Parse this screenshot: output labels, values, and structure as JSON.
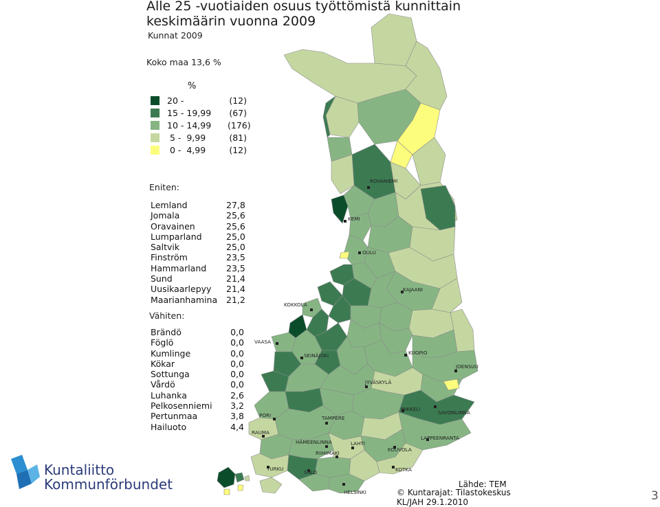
{
  "title": {
    "line1": "Alle 25 -vuotiaiden osuus työttömistä kunnittain",
    "line2": "keskimäärin vuonna 2009"
  },
  "subtitle": "Kunnat 2009",
  "country_total": "Koko maa 13,6 %",
  "legend": {
    "unit": "%",
    "classes": [
      {
        "range": "20 -",
        "count": "(12)",
        "color": "#0b4d2b"
      },
      {
        "range": "15 - 19,99",
        "count": "(67)",
        "color": "#3c7b52"
      },
      {
        "range": "10 - 14,99",
        "count": "(176)",
        "color": "#86b583"
      },
      {
        "range": " 5 -  9,99",
        "count": "(81)",
        "color": "#c5d7a1"
      },
      {
        "range": " 0 -  4,99",
        "count": "(12)",
        "color": "#fdfd7d"
      }
    ]
  },
  "most": {
    "heading": "Eniten:",
    "items": [
      {
        "name": "Lemland",
        "value": "27,8"
      },
      {
        "name": "Jomala",
        "value": "25,6"
      },
      {
        "name": "Oravainen",
        "value": "25,6"
      },
      {
        "name": "Lumparland",
        "value": "25,0"
      },
      {
        "name": "Saltvik",
        "value": "25,0"
      },
      {
        "name": "Finström",
        "value": "23,5"
      },
      {
        "name": "Hammarland",
        "value": "23,5"
      },
      {
        "name": "Sund",
        "value": "21,4"
      },
      {
        "name": "Uusikaarlepyy",
        "value": "21,4"
      },
      {
        "name": "Maarianhamina",
        "value": "21,2"
      }
    ]
  },
  "least": {
    "heading": "Vähiten:",
    "items": [
      {
        "name": "Brändö",
        "value": "0,0"
      },
      {
        "name": "Föglö",
        "value": "0,0"
      },
      {
        "name": "Kumlinge",
        "value": "0,0"
      },
      {
        "name": "Kökar",
        "value": "0,0"
      },
      {
        "name": "Sottunga",
        "value": "0,0"
      },
      {
        "name": "Vårdö",
        "value": "0,0"
      },
      {
        "name": "Luhanka",
        "value": "2,6"
      },
      {
        "name": "Pelkosenniemi",
        "value": "3,2"
      },
      {
        "name": "Pertunmaa",
        "value": "3,8"
      },
      {
        "name": "Hailuoto",
        "value": "4,4"
      }
    ]
  },
  "cities": {
    "rovaniemi": "ROVANIEMI",
    "kemi": "KEMI",
    "oulu": "OULU",
    "kajaani": "KAJAANI",
    "kokkola": "KOKKOLA",
    "vaasa": "VAASA",
    "seinajoki": "SEINÄJOKI",
    "kuopio": "KUOPIO",
    "joensuu": "JOENSUU",
    "jyvaskyla": "JYVÄSKYLÄ",
    "mikkeli": "MIKKELI",
    "savonlinna": "SAVONLINNA",
    "pori": "PORI",
    "tampere": "TAMPERE",
    "rauma": "RAUMA",
    "hameenlinna": "HÄMEENLINNA",
    "lahti": "LAHTI",
    "lappeenranta": "LAPPEENRANTA",
    "riihimaki": "RIIHIMÄKI",
    "kouvola": "KOUVOLA",
    "turku": "TURKU",
    "salo": "SALO",
    "kotka": "KOTKA",
    "helsinki": "HELSINKI"
  },
  "logo": {
    "line1": "Kuntaliitto",
    "line2": "Kommunförbundet"
  },
  "source": {
    "line1": "Lähde: TEM",
    "line2": "© Kuntarajat: Tilastokeskus",
    "line3": "KL/JAH 29.1.2010"
  },
  "page_number": "3"
}
